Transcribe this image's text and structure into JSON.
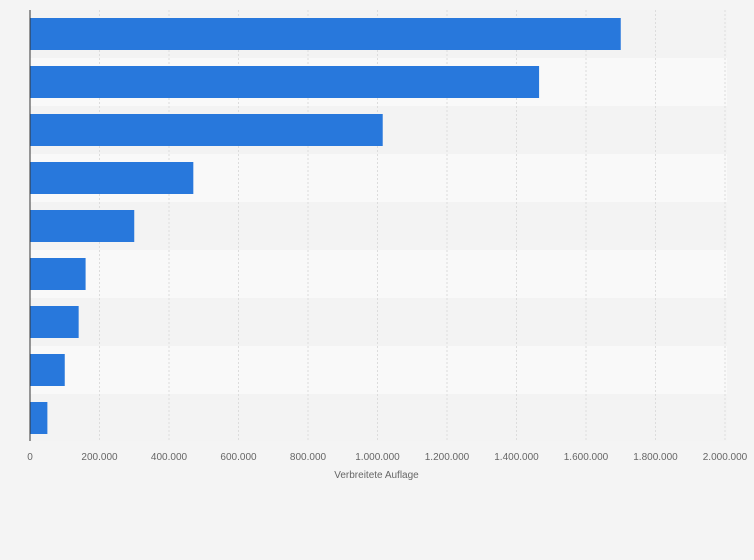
{
  "chart_data": {
    "type": "bar",
    "orientation": "horizontal",
    "categories": [
      "",
      "",
      "",
      "",
      "",
      "",
      "",
      "",
      ""
    ],
    "values": [
      1700000,
      1465000,
      1015000,
      470000,
      300000,
      160000,
      140000,
      100000,
      50000
    ],
    "xlabel": "Verbreitete Auflage",
    "ylabel": "",
    "xlim": [
      0,
      2000000
    ],
    "x_ticks": [
      0,
      200000,
      400000,
      600000,
      800000,
      1000000,
      1200000,
      1400000,
      1600000,
      1800000,
      2000000
    ],
    "x_tick_labels": [
      "0",
      "200.000",
      "400.000",
      "600.000",
      "800.000",
      "1.000.000",
      "1.200.000",
      "1.400.000",
      "1.600.000",
      "1.800.000",
      "2.000.000"
    ],
    "grid": true,
    "legend": "none",
    "colors": {
      "bar": "#2878dc",
      "band_odd": "#f3f3f3",
      "band_even": "#f9f9f9",
      "grid": "#dcdcdc",
      "axis": "#333333",
      "text": "#666666"
    }
  }
}
